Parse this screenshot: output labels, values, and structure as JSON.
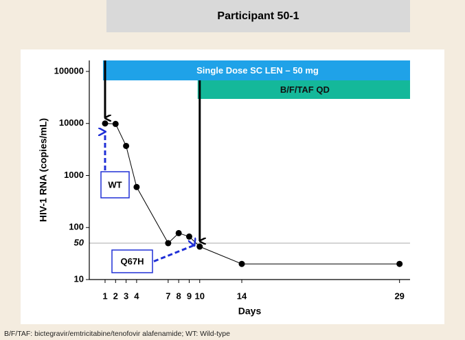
{
  "chart_data": {
    "type": "line",
    "title": "Participant 50-1",
    "x": [
      1,
      2,
      3,
      4,
      7,
      8,
      9,
      10,
      14,
      29
    ],
    "values": [
      10000,
      9800,
      3700,
      600,
      50,
      78,
      67,
      43,
      20,
      20
    ],
    "color": "#000000",
    "xlim": [
      -0.5,
      30
    ],
    "xticks": [
      1,
      2,
      3,
      4,
      7,
      8,
      9,
      10,
      14,
      29
    ],
    "ylim": [
      10,
      100000
    ],
    "yticks": [
      10,
      100,
      1000,
      10000,
      100000
    ],
    "log_y": true,
    "threshold": 50,
    "xlabel": "Days",
    "ylabel": "HIV-1 RNA (copies/mL)",
    "bands": [
      {
        "label": "Single Dose SC LEN – 50 mg",
        "start": 1,
        "color": "#1fa2e8"
      },
      {
        "label": "B/F/TAF QD",
        "start": 10,
        "color": "#14b89a"
      }
    ],
    "annotations": [
      {
        "label": "WT",
        "x": 1
      },
      {
        "label": "Q67H",
        "x": 10
      }
    ],
    "footnote": "B/F/TAF: bictegravir/emtricitabine/tenofovir alafenamide; WT: Wild-type"
  }
}
